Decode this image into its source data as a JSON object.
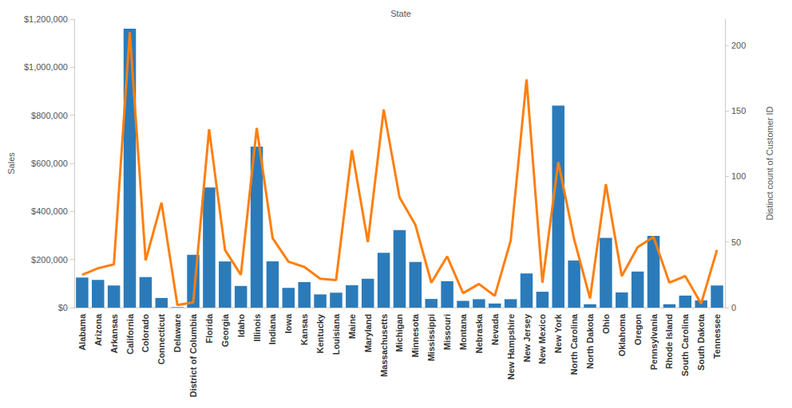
{
  "chart_data": {
    "type": "bar",
    "xlabel": "State",
    "ylabel": "Sales",
    "y2label": "Distinct count of Customer ID",
    "categories": [
      "Alabama",
      "Arizona",
      "Arkansas",
      "California",
      "Colorado",
      "Connecticut",
      "Delaware",
      "District of Columbia",
      "Florida",
      "Georgia",
      "Idaho",
      "Illinois",
      "Indiana",
      "Iowa",
      "Kansas",
      "Kentucky",
      "Louisiana",
      "Maine",
      "Maryland",
      "Massachusetts",
      "Michigan",
      "Minnesota",
      "Mississippi",
      "Missouri",
      "Montana",
      "Nebraska",
      "Nevada",
      "New Hampshire",
      "New Jersey",
      "New Mexico",
      "New York",
      "North Carolina",
      "North Dakota",
      "Ohio",
      "Oklahoma",
      "Oregon",
      "Pennsylvania",
      "Rhode Island",
      "South Carolina",
      "South Dakota",
      "Tennessee"
    ],
    "series": [
      {
        "name": "Sales",
        "type": "bar",
        "color": "#2b7bba",
        "values": [
          125000,
          115000,
          92000,
          1160000,
          127000,
          40000,
          2000,
          220000,
          500000,
          192000,
          90000,
          670000,
          192000,
          82000,
          106000,
          55000,
          62000,
          93000,
          120000,
          228000,
          322000,
          190000,
          36000,
          110000,
          28000,
          35000,
          17000,
          35000,
          142000,
          66000,
          840000,
          196000,
          14000,
          290000,
          63000,
          150000,
          298000,
          14000,
          50000,
          30000,
          92000
        ]
      },
      {
        "name": "Distinct count of Customer ID",
        "type": "line",
        "axis": "y2",
        "color": "#ff7f0e",
        "values": [
          25,
          30,
          33,
          210,
          36,
          80,
          2,
          4,
          136,
          44,
          25,
          137,
          53,
          35,
          31,
          22,
          21,
          120,
          50,
          151,
          84,
          63,
          19,
          39,
          11,
          18,
          9,
          51,
          174,
          19,
          111,
          52,
          7,
          94,
          24,
          46,
          54,
          19,
          24,
          3,
          44
        ]
      }
    ],
    "ylim": [
      0,
      1200000
    ],
    "yticks": [
      {
        "value": 0,
        "label": "$0"
      },
      {
        "value": 200000,
        "label": "$200,000"
      },
      {
        "value": 400000,
        "label": "$400,000"
      },
      {
        "value": 600000,
        "label": "$600,000"
      },
      {
        "value": 800000,
        "label": "$800,000"
      },
      {
        "value": 1000000,
        "label": "$1,000,000"
      },
      {
        "value": 1200000,
        "label": "$1,200,000"
      }
    ],
    "y2lim": [
      0,
      220
    ],
    "y2ticks": [
      0,
      50,
      100,
      150,
      200
    ],
    "grid": false
  }
}
